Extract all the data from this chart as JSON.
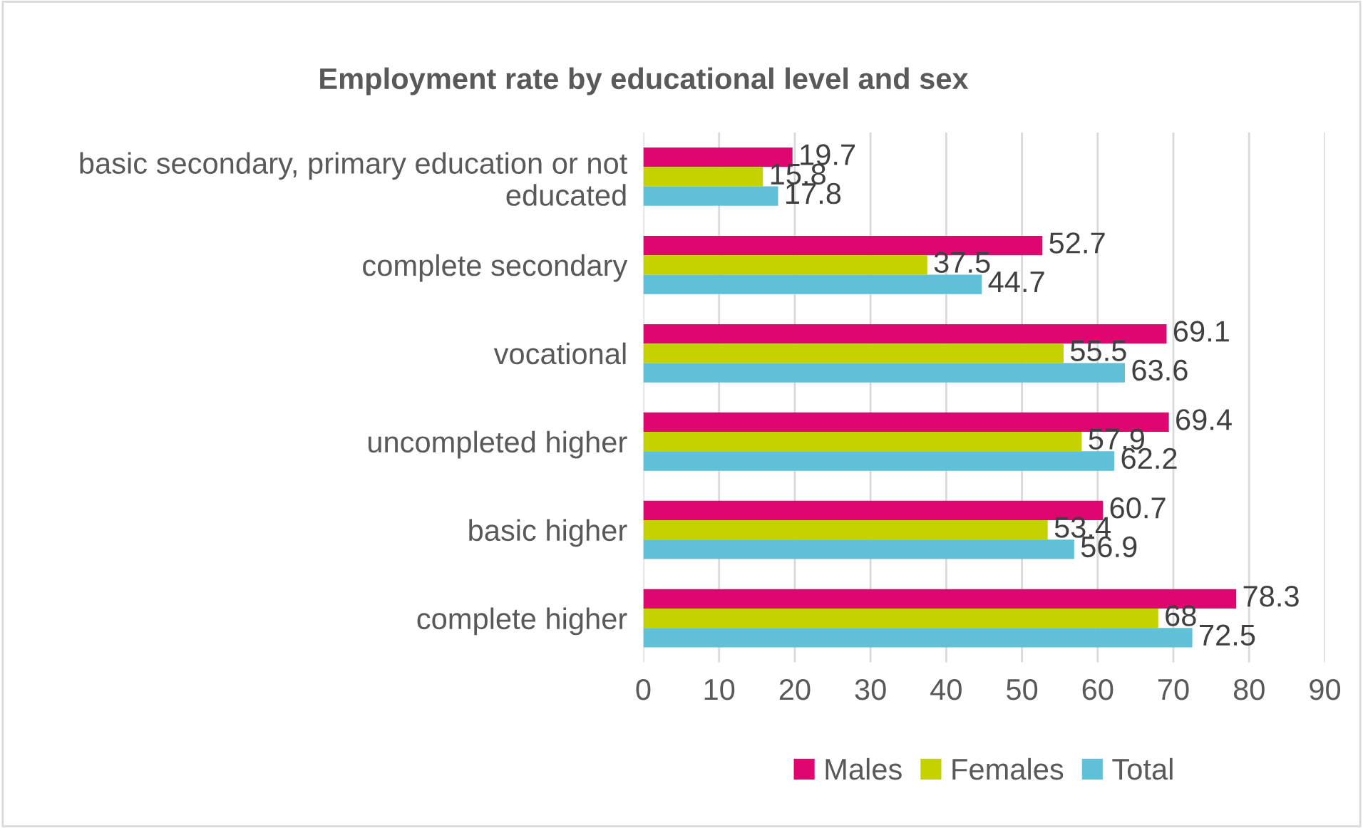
{
  "chart_data": {
    "type": "bar",
    "orientation": "horizontal",
    "title": "Employment rate by educational level and sex",
    "categories": [
      "basic secondary, primary education or not educated",
      "complete secondary",
      "vocational",
      "uncompleted higher",
      "basic higher",
      "complete higher"
    ],
    "series": [
      {
        "name": "Males",
        "color": "#e0066f",
        "values": [
          19.7,
          52.7,
          69.1,
          69.4,
          60.7,
          78.3
        ]
      },
      {
        "name": "Females",
        "color": "#c5d200",
        "values": [
          15.8,
          37.5,
          55.5,
          57.9,
          53.4,
          68
        ]
      },
      {
        "name": "Total",
        "color": "#5fc0d8",
        "values": [
          17.8,
          44.7,
          63.6,
          62.2,
          56.9,
          72.5
        ]
      }
    ],
    "xlim": [
      0,
      90
    ],
    "xticks": [
      0,
      10,
      20,
      30,
      40,
      50,
      60,
      70,
      80,
      90
    ],
    "grid": "x",
    "legend": "bottom",
    "data_labels": true
  }
}
